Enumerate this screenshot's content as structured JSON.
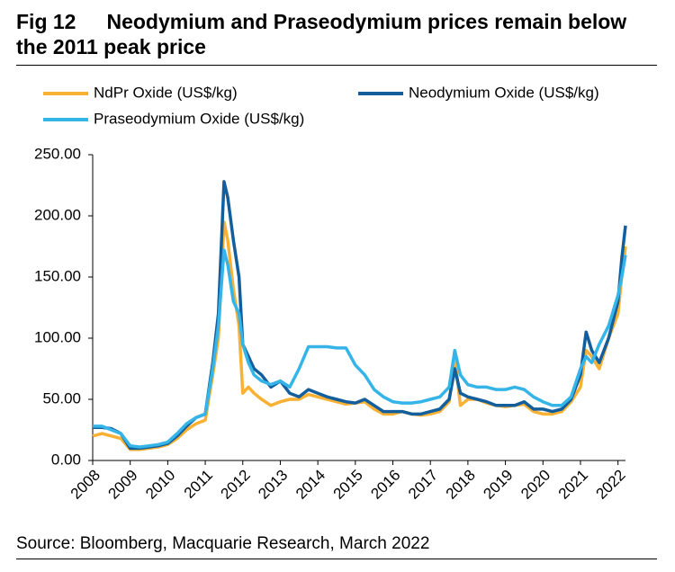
{
  "chart_data": {
    "type": "line",
    "figure_label": "Fig 12",
    "title": "Neodymium and Praseodymium prices remain below the 2011 peak price",
    "source": "Source: Bloomberg, Macquarie Research, March 2022",
    "x": [
      2008.0,
      2008.25,
      2008.5,
      2008.75,
      2009.0,
      2009.25,
      2009.5,
      2009.75,
      2010.0,
      2010.25,
      2010.5,
      2010.75,
      2011.0,
      2011.2,
      2011.35,
      2011.5,
      2011.6,
      2011.75,
      2011.9,
      2012.0,
      2012.15,
      2012.3,
      2012.5,
      2012.75,
      2013.0,
      2013.25,
      2013.5,
      2013.75,
      2014.0,
      2014.25,
      2014.5,
      2014.75,
      2015.0,
      2015.25,
      2015.5,
      2015.75,
      2016.0,
      2016.25,
      2016.5,
      2016.75,
      2017.0,
      2017.25,
      2017.5,
      2017.65,
      2017.8,
      2018.0,
      2018.25,
      2018.5,
      2018.75,
      2019.0,
      2019.25,
      2019.5,
      2019.75,
      2020.0,
      2020.25,
      2020.5,
      2020.75,
      2021.0,
      2021.15,
      2021.3,
      2021.5,
      2021.75,
      2022.0,
      2022.1,
      2022.2
    ],
    "series": [
      {
        "name": "NdPr Oxide (US$/kg)",
        "color": "#f8b133",
        "values": [
          20,
          22,
          20,
          18,
          9,
          9,
          10,
          11,
          13,
          18,
          25,
          30,
          33,
          70,
          100,
          195,
          180,
          140,
          110,
          55,
          60,
          55,
          50,
          45,
          48,
          50,
          50,
          54,
          52,
          50,
          48,
          46,
          47,
          48,
          42,
          38,
          38,
          40,
          38,
          37,
          38,
          40,
          48,
          85,
          45,
          50,
          50,
          47,
          45,
          44,
          45,
          46,
          40,
          38,
          38,
          40,
          48,
          60,
          90,
          85,
          75,
          100,
          120,
          150,
          175
        ]
      },
      {
        "name": "Neodymium Oxide (US$/kg)",
        "color": "#135e9c",
        "values": [
          27,
          27,
          26,
          22,
          10,
          10,
          11,
          12,
          14,
          20,
          28,
          35,
          38,
          80,
          120,
          228,
          215,
          180,
          150,
          95,
          85,
          75,
          70,
          60,
          65,
          55,
          52,
          58,
          55,
          52,
          50,
          48,
          47,
          50,
          45,
          40,
          40,
          40,
          38,
          38,
          40,
          42,
          50,
          75,
          55,
          52,
          50,
          48,
          45,
          45,
          45,
          48,
          42,
          42,
          40,
          42,
          50,
          70,
          105,
          90,
          80,
          100,
          130,
          165,
          192
        ]
      },
      {
        "name": "Praseodymium Oxide (US$/kg)",
        "color": "#35b4e8",
        "values": [
          28,
          28,
          25,
          22,
          12,
          11,
          12,
          13,
          15,
          22,
          30,
          35,
          38,
          75,
          110,
          172,
          160,
          130,
          120,
          95,
          80,
          70,
          65,
          62,
          65,
          60,
          75,
          93,
          93,
          93,
          92,
          92,
          78,
          70,
          58,
          52,
          48,
          47,
          47,
          48,
          50,
          52,
          60,
          90,
          70,
          62,
          60,
          60,
          58,
          58,
          60,
          58,
          52,
          48,
          45,
          45,
          52,
          75,
          85,
          80,
          95,
          110,
          135,
          150,
          168
        ]
      }
    ],
    "xlim": [
      2008,
      2022.2
    ],
    "xticks": [
      2008,
      2009,
      2010,
      2011,
      2012,
      2013,
      2014,
      2015,
      2016,
      2017,
      2018,
      2019,
      2020,
      2021,
      2022
    ],
    "ylim": [
      0,
      250
    ],
    "yticks": [
      {
        "value": 0,
        "label": "0.00"
      },
      {
        "value": 50,
        "label": "50.00"
      },
      {
        "value": 100,
        "label": "100.00"
      },
      {
        "value": 150,
        "label": "150.00"
      },
      {
        "value": 200,
        "label": "200.00"
      },
      {
        "value": 250,
        "label": "250.00"
      }
    ],
    "grid": false
  }
}
